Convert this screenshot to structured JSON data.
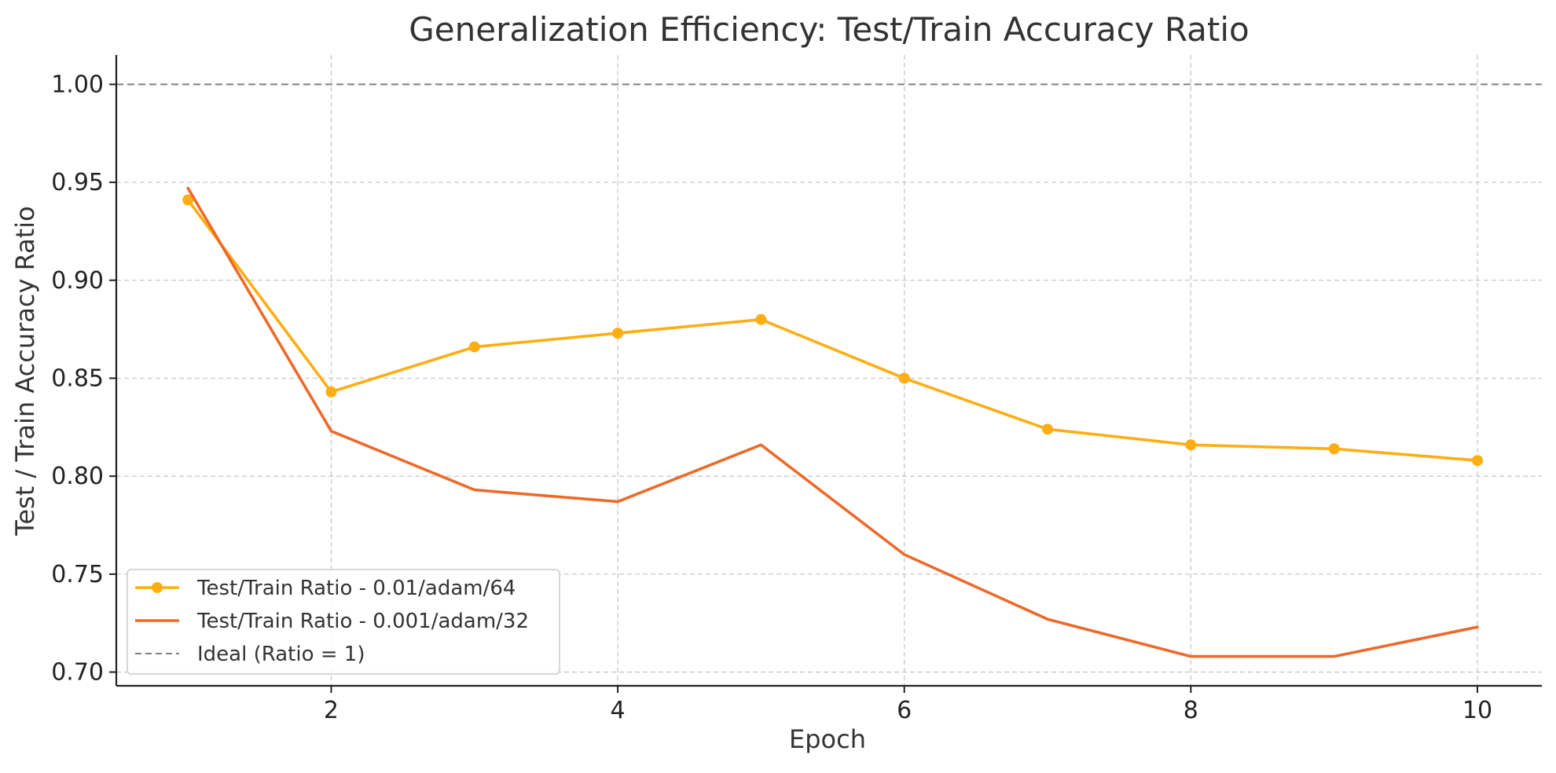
{
  "chart_data": {
    "type": "line",
    "title": "Generalization Efficiency: Test/Train Accuracy Ratio",
    "xlabel": "Epoch",
    "ylabel": "Test / Train Accuracy Ratio",
    "xlim": [
      0.5,
      10.45
    ],
    "ylim": [
      0.693,
      1.015
    ],
    "x_ticks": [
      2,
      4,
      6,
      8,
      10
    ],
    "x_tick_labels": [
      "2",
      "4",
      "6",
      "8",
      "10"
    ],
    "y_ticks": [
      0.7,
      0.75,
      0.8,
      0.85,
      0.9,
      0.95,
      1.0
    ],
    "y_tick_labels": [
      "0.70",
      "0.75",
      "0.80",
      "0.85",
      "0.90",
      "0.95",
      "1.00"
    ],
    "grid": true,
    "legend_position": "lower-left",
    "series": [
      {
        "name": "Test/Train Ratio - 0.01/adam/64",
        "color": "#FDAE14",
        "markers": true,
        "x": [
          1,
          2,
          3,
          4,
          5,
          6,
          7,
          8,
          9,
          10
        ],
        "values": [
          0.941,
          0.843,
          0.866,
          0.873,
          0.88,
          0.85,
          0.824,
          0.816,
          0.814,
          0.808
        ]
      },
      {
        "name": "Test/Train Ratio - 0.001/adam/32",
        "color": "#EC6A2A",
        "markers": false,
        "x": [
          1,
          2,
          3,
          4,
          5,
          6,
          7,
          8,
          9,
          10
        ],
        "values": [
          0.947,
          0.823,
          0.793,
          0.787,
          0.816,
          0.76,
          0.727,
          0.708,
          0.708,
          0.723
        ]
      }
    ],
    "reference_line": {
      "name": "Ideal (Ratio = 1)",
      "value": 1.0,
      "color": "#808080"
    }
  }
}
